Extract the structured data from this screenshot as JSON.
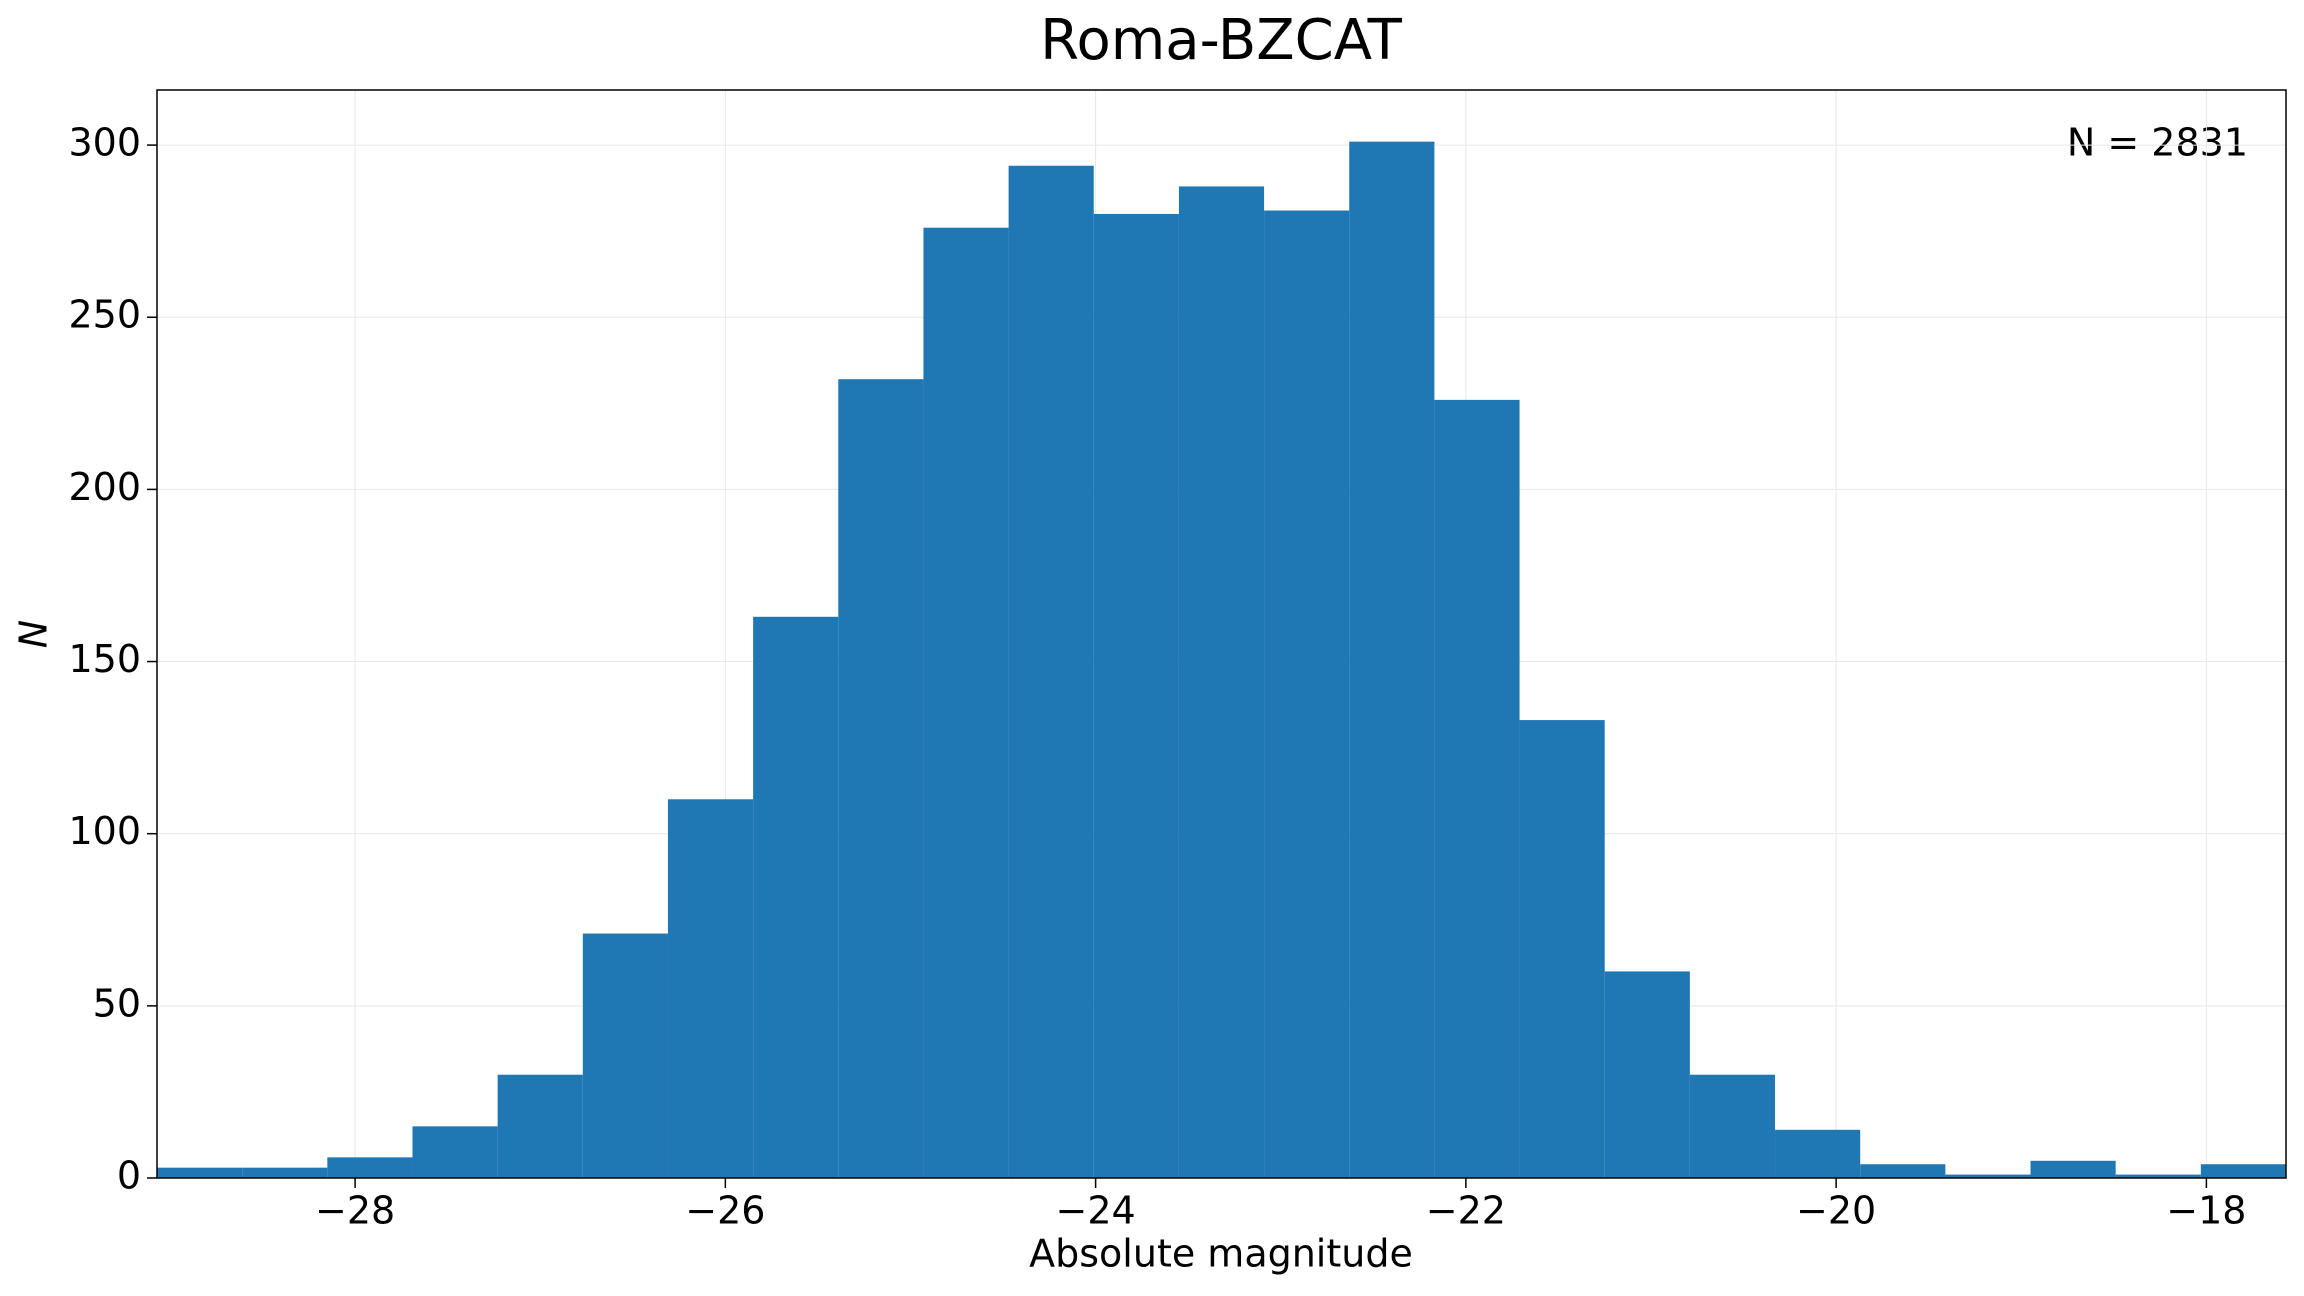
{
  "chart_data": {
    "type": "histogram",
    "title": "Roma-BZCAT",
    "x_label": "Absolute magnitude",
    "y_label": "N",
    "annotation": "N = 2831",
    "bins": [
      -29.07,
      -28.61,
      -28.15,
      -27.69,
      -27.23,
      -26.77,
      -26.31,
      -25.85,
      -25.39,
      -24.93,
      -24.47,
      -24.01,
      -23.55,
      -23.09,
      -22.63,
      -22.17,
      -21.71,
      -21.25,
      -20.79,
      -20.33,
      -19.87,
      -19.41,
      -18.95,
      -18.49,
      -18.03,
      -17.57
    ],
    "values": [
      3,
      3,
      6,
      15,
      30,
      71,
      110,
      163,
      232,
      276,
      294,
      280,
      288,
      281,
      301,
      226,
      133,
      60,
      30,
      14,
      4,
      1,
      5,
      1,
      4
    ],
    "color": "#1f77b4",
    "xlim": [
      -29.07,
      -17.57
    ],
    "xticks": [
      {
        "value": -28,
        "label": "−28"
      },
      {
        "value": -26,
        "label": "−26"
      },
      {
        "value": -24,
        "label": "−24"
      },
      {
        "value": -22,
        "label": "−22"
      },
      {
        "value": -20,
        "label": "−20"
      },
      {
        "value": -18,
        "label": "−18"
      }
    ],
    "ylim": [
      0,
      316
    ],
    "yticks": [
      0,
      50,
      100,
      150,
      200,
      250,
      300
    ],
    "grid": true
  }
}
